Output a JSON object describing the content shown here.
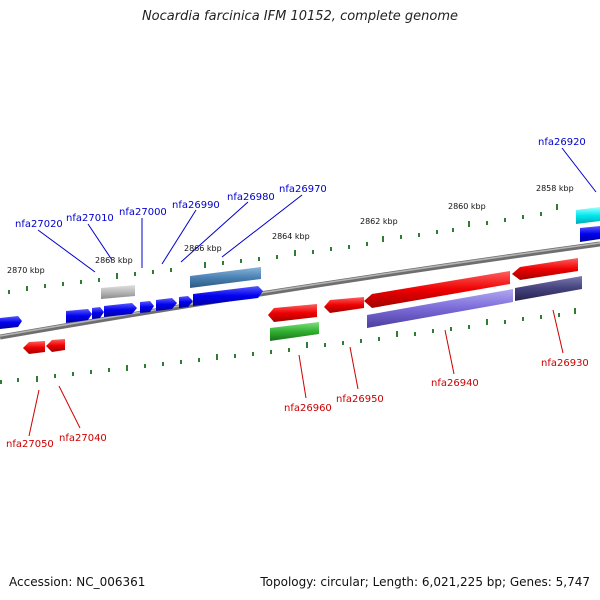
{
  "title": "Nocardia farcinica IFM 10152, complete genome",
  "footer": {
    "accession": "Accession: NC_006361",
    "summary": "Topology: circular; Length: 6,021,225 bp; Genes: 5,747"
  },
  "colors": {
    "forward_label": "#0000cc",
    "reverse_label": "#cc0000",
    "tick": "#2e7d32",
    "backbone": "#808080"
  },
  "scale_labels": [
    "2870 kbp",
    "2868 kbp",
    "2866 kbp",
    "2864 kbp",
    "2862 kbp",
    "2860 kbp",
    "2858 kbp"
  ],
  "forward_genes": [
    "nfa27020",
    "nfa27010",
    "nfa27000",
    "nfa26990",
    "nfa26980",
    "nfa26970",
    "nfa26920"
  ],
  "reverse_genes": [
    "nfa27050",
    "nfa27040",
    "nfa26960",
    "nfa26950",
    "nfa26940",
    "nfa26930"
  ]
}
